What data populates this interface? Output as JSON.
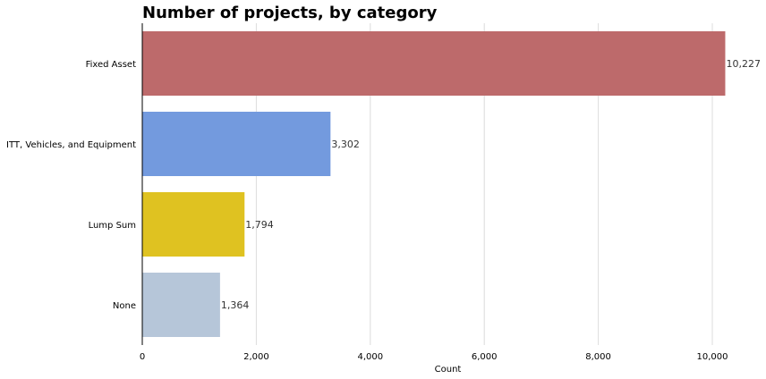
{
  "chart_data": {
    "type": "bar",
    "orientation": "horizontal",
    "title": "Number of projects, by category",
    "xlabel": "Count",
    "ylabel": "",
    "categories": [
      "Fixed Asset",
      "ITT, Vehicles, and Equipment",
      "Lump Sum",
      "None"
    ],
    "values": [
      10227,
      3302,
      1794,
      1364
    ],
    "value_labels": [
      "10,227",
      "3,302",
      "1,794",
      "1,364"
    ],
    "colors": [
      "#bd6a6b",
      "#739ade",
      "#dfc221",
      "#b6c6d9"
    ],
    "xlim": [
      0,
      10500
    ],
    "x_ticks": [
      0,
      2000,
      4000,
      6000,
      8000,
      10000
    ],
    "x_tick_labels": [
      "0",
      "2,000",
      "4,000",
      "6,000",
      "8,000",
      "10,000"
    ],
    "grid": "vertical",
    "legend": "none"
  }
}
